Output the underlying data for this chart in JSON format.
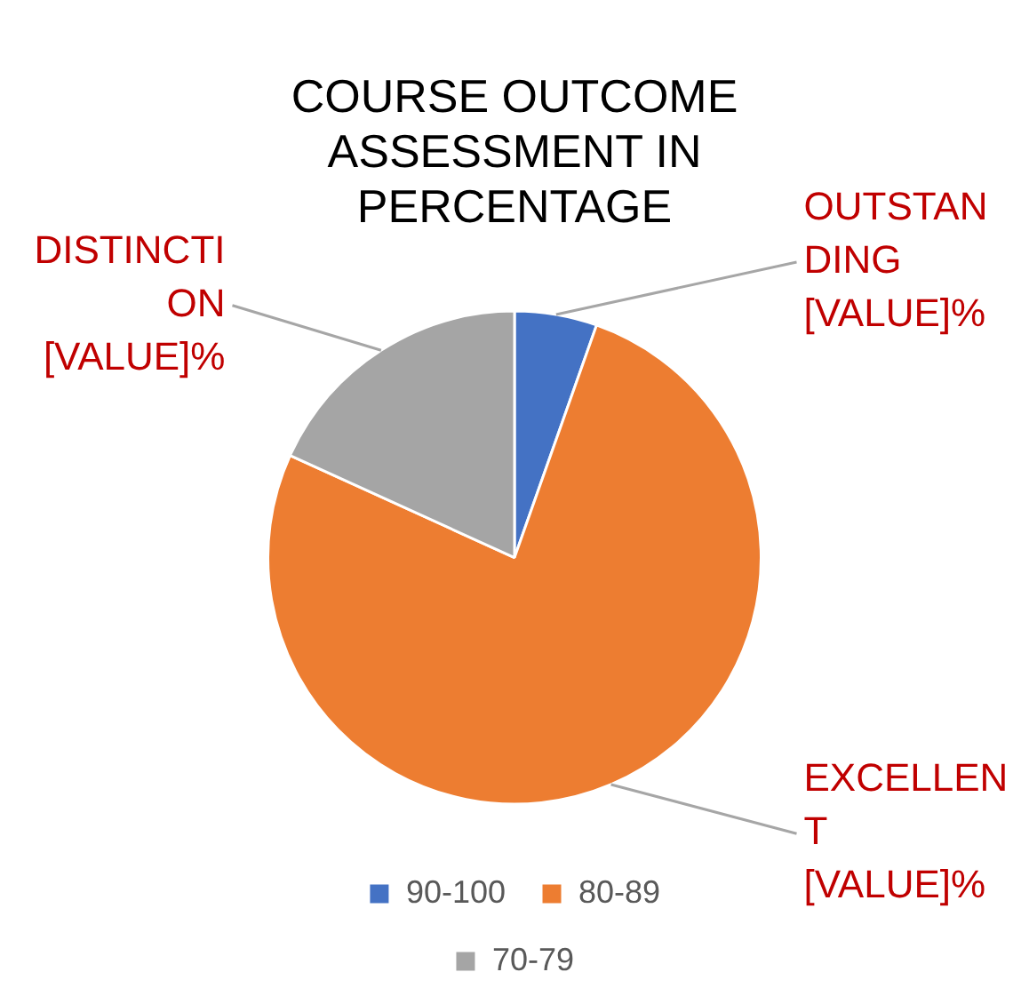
{
  "chart_data": {
    "type": "pie",
    "title": "COURSE OUTCOME ASSESSMENT IN PERCENTAGE",
    "categories": [
      "90-100",
      "80-89",
      "70-79"
    ],
    "values": [
      5.4,
      76.4,
      18.2
    ],
    "colors": [
      "#4472c4",
      "#ed7d31",
      "#a5a5a5"
    ],
    "value_labels": [
      "OUTSTANDING [VALUE]%",
      "EXCELLENT [VALUE]%",
      "DISTINCTION [VALUE]%"
    ],
    "legend": "bottom"
  }
}
